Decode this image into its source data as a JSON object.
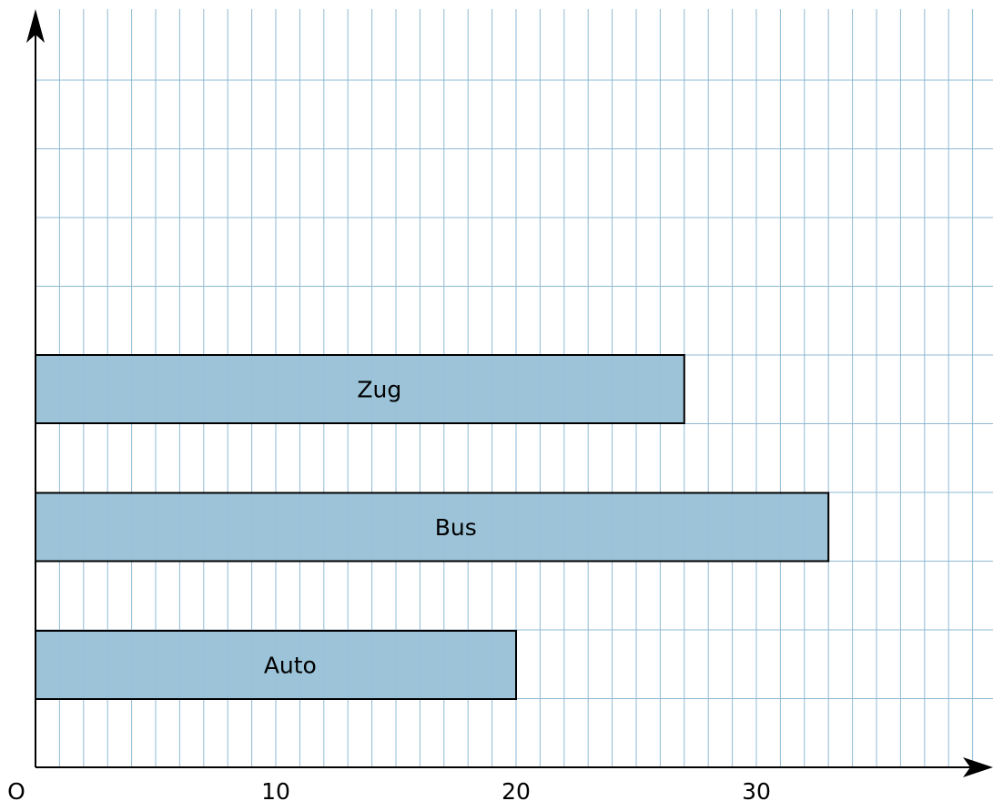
{
  "chart_data": {
    "type": "bar",
    "orientation": "horizontal",
    "title": "",
    "xlabel": "",
    "ylabel": "",
    "categories": [
      "Auto",
      "Bus",
      "Zug"
    ],
    "values": [
      20,
      33,
      27
    ],
    "xlim": [
      0,
      39
    ],
    "x_ticks": [
      {
        "value": 0,
        "label": "O"
      },
      {
        "value": 10,
        "label": "10"
      },
      {
        "value": 20,
        "label": "20"
      },
      {
        "value": 30,
        "label": "30"
      }
    ],
    "grid": true,
    "colors": {
      "bar_fill": "#97c0d6",
      "bar_stroke": "#000000",
      "grid": "#8fb9d4",
      "axis": "#000000"
    }
  }
}
